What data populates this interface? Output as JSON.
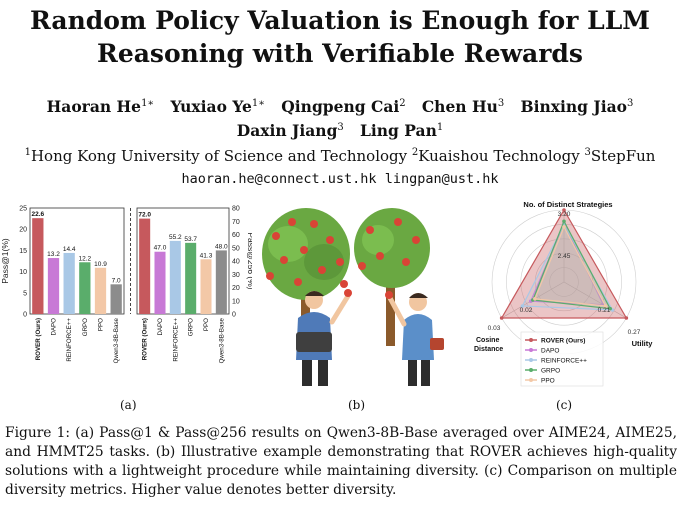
{
  "title": {
    "line1": "Random Policy Valuation is Enough for LLM",
    "line2": "Reasoning with Verifiable Rewards"
  },
  "authors": [
    {
      "name": "Haoran He",
      "sup": "1∗"
    },
    {
      "name": "Yuxiao Ye",
      "sup": "1∗"
    },
    {
      "name": "Qingpeng Cai",
      "sup": "2"
    },
    {
      "name": "Chen Hu",
      "sup": "3"
    },
    {
      "name": "Binxing Jiao",
      "sup": "3"
    },
    {
      "name": "Daxin Jiang",
      "sup": "3"
    },
    {
      "name": "Ling Pan",
      "sup": "1"
    }
  ],
  "affiliations": [
    {
      "sup": "1",
      "name": "Hong Kong University of Science and Technology"
    },
    {
      "sup": "2",
      "name": "Kuaishou Technology"
    },
    {
      "sup": "3",
      "name": "StepFun"
    }
  ],
  "emails": "haoran.he@connect.ust.hk lingpan@ust.hk",
  "colors": {
    "rover": "#c6595d",
    "dapo": "#c879d6",
    "reinforce": "#a9c8e6",
    "grpo": "#5aad6b",
    "ppo": "#f3c8a7",
    "base": "#8c8c8c"
  },
  "panel_labels": {
    "a": "(a)",
    "b": "(b)",
    "c": "(c)"
  },
  "illustration": {
    "icon": "apple-tree-picker-illustration"
  },
  "chart_data": [
    {
      "type": "bar",
      "ylabel": "Pass@1(%)",
      "ylim": [
        0,
        25
      ],
      "yticks": [
        0,
        5,
        10,
        15,
        20,
        25
      ],
      "categories": [
        "ROVER (Ours)",
        "DAPO",
        "REINFORCE++",
        "GRPO",
        "PPO",
        "Qwen3-8B-Base"
      ],
      "values": [
        22.6,
        13.2,
        14.4,
        12.2,
        10.9,
        7.0
      ],
      "labels": [
        "22.6",
        "13.2",
        "14.4",
        "12.2",
        "10.9",
        "7.0"
      ]
    },
    {
      "type": "bar",
      "ylabel": "Pass@256 (%)",
      "ylim": [
        0,
        80
      ],
      "yticks": [
        0,
        10,
        20,
        30,
        40,
        50,
        60,
        70,
        80
      ],
      "categories": [
        "ROVER (Ours)",
        "DAPO",
        "REINFORCE++",
        "GRPO",
        "PPO",
        "Qwen3-8B-Base"
      ],
      "values": [
        72.0,
        47.0,
        55.2,
        53.7,
        41.3,
        48.0
      ],
      "labels": [
        "72.0",
        "47.0",
        "55.2",
        "53.7",
        "41.3",
        "48.0"
      ]
    },
    {
      "type": "radar",
      "axes": [
        {
          "name": "No. of Distinct Strategies",
          "max": 3.2
        },
        {
          "name": "Utility",
          "max": 0.27
        },
        {
          "name": "Cosine Distance",
          "max": 0.03
        }
      ],
      "tick_labels": [
        "3.20",
        "2.45",
        "0.27",
        "0.21",
        "0.03",
        "0.02"
      ],
      "legend_position": "bottom-center",
      "series": [
        {
          "name": "ROVER (Ours)",
          "values": [
            3.2,
            0.27,
            0.03
          ]
        },
        {
          "name": "DAPO",
          "values": [
            2.6,
            0.17,
            0.016
          ]
        },
        {
          "name": "REINFORCE++",
          "values": [
            2.55,
            0.21,
            0.02
          ]
        },
        {
          "name": "GRPO",
          "values": [
            2.7,
            0.2,
            0.015
          ]
        },
        {
          "name": "PPO",
          "values": [
            2.45,
            0.18,
            0.014
          ]
        }
      ]
    }
  ],
  "caption": "Figure 1: (a) Pass@1 & Pass@256 results on Qwen3-8B-Base averaged over AIME24, AIME25, and HMMT25 tasks. (b) Illustrative example demonstrating that ROVER achieves high-quality solutions with a lightweight procedure while maintaining diversity. (c) Comparison on multiple diversity metrics. Higher value denotes better diversity."
}
